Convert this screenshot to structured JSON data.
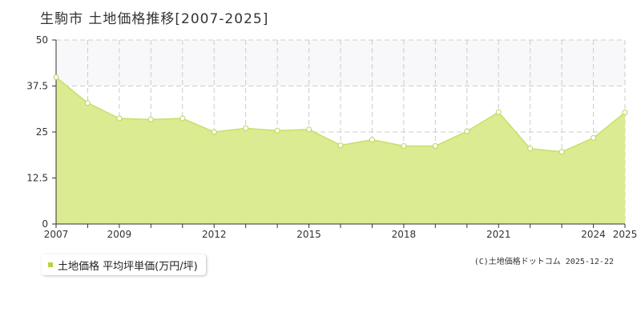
{
  "title": "生駒市 土地価格推移[2007-2025]",
  "legend": {
    "label": "土地価格 平均坪単価(万円/坪)",
    "marker_color": "#b5d43c"
  },
  "copyright": "(C)土地価格ドットコム 2025-12-22",
  "colors": {
    "fill": "#dbeb91",
    "line": "#c6e06a",
    "marker_fill": "#ffffff",
    "marker_stroke": "#b9d45a",
    "grid": "#cccccc",
    "upper_band": "#f8f8fa",
    "axis": "#333333"
  },
  "chart_data": {
    "type": "area",
    "title": "生駒市 土地価格推移[2007-2025]",
    "x": [
      2007,
      2008,
      2009,
      2010,
      2011,
      2012,
      2013,
      2014,
      2015,
      2016,
      2017,
      2018,
      2019,
      2020,
      2021,
      2022,
      2023,
      2024,
      2025
    ],
    "series": [
      {
        "name": "土地価格 平均坪単価(万円/坪)",
        "values": [
          39.9,
          32.9,
          28.7,
          28.4,
          28.7,
          25.0,
          26.0,
          25.4,
          25.7,
          21.4,
          22.9,
          21.2,
          21.2,
          25.2,
          30.4,
          20.5,
          19.6,
          23.4,
          30.3
        ]
      }
    ],
    "xlim": [
      2007,
      2025
    ],
    "ylim": [
      0,
      50
    ],
    "yticks": [
      0,
      12.5,
      25,
      37.5,
      50
    ],
    "ytick_labels": [
      "0",
      "12.5",
      "25",
      "37.5",
      "50"
    ],
    "xtick_labels": [
      "2007",
      "2009",
      "2012",
      "2015",
      "2018",
      "2021",
      "2024",
      "2025"
    ],
    "xtick_years": [
      2007,
      2009,
      2012,
      2015,
      2018,
      2021,
      2024,
      2025
    ],
    "grid": true,
    "legend_position": "bottom-left"
  }
}
